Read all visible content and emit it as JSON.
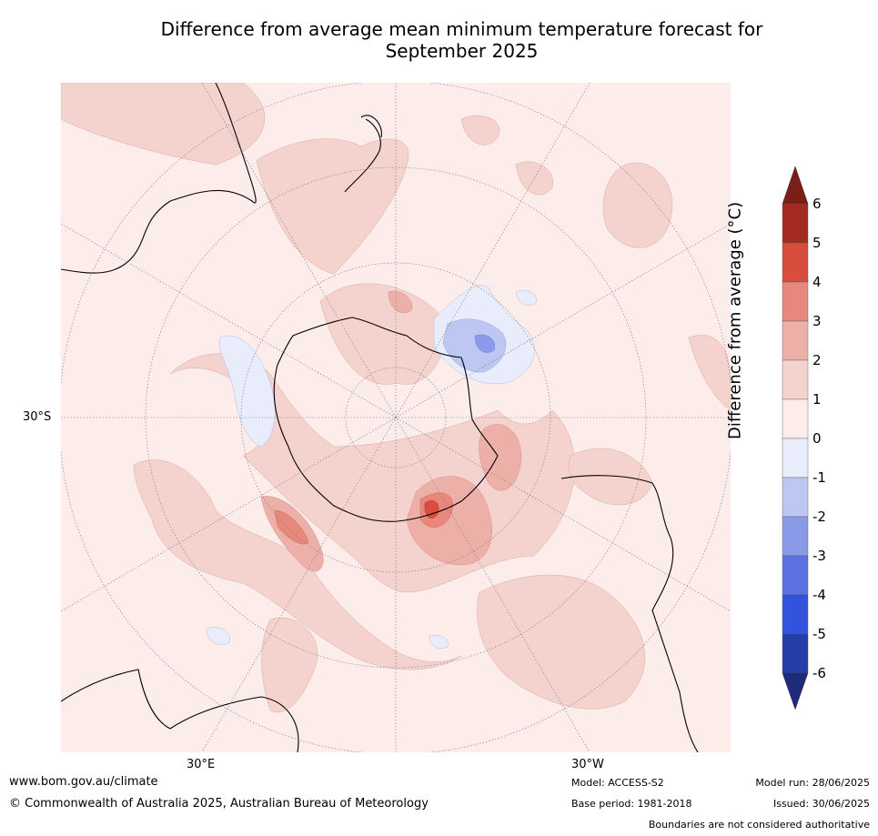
{
  "title_line1": "Difference from average mean minimum temperature forecast for",
  "title_line2": "September 2025",
  "map": {
    "lat_label": "30°S",
    "lon_labels": [
      "30°E",
      "30°W"
    ],
    "colors": {
      "ocean_base": "#fcecea",
      "land_line": "#000000",
      "grid": "#7a7a7a"
    }
  },
  "colorbar": {
    "label": "Difference from average (°C)",
    "ticks": [
      "6",
      "5",
      "4",
      "3",
      "2",
      "1",
      "0",
      "-1",
      "-2",
      "-3",
      "-4",
      "-5",
      "-6"
    ],
    "colors": [
      "#a52a22",
      "#d94d3f",
      "#e8877c",
      "#edb0a8",
      "#f4d2ce",
      "#fcecea",
      "#e8ecfb",
      "#bec6f2",
      "#8a9ae9",
      "#5c72e1",
      "#3352dd",
      "#253ea8"
    ],
    "over_color": "#7a1f18",
    "under_color": "#1e2b7a"
  },
  "footer": {
    "website": "www.bom.gov.au/climate",
    "copyright": "© Commonwealth of Australia 2025, Australian Bureau of Meteorology",
    "model": "Model: ACCESS-S2",
    "base_period": "Base period: 1981-2018",
    "model_run": "Model run: 28/06/2025",
    "issued": "Issued: 30/06/2025",
    "disclaimer": "Boundaries are not considered authoritative"
  }
}
